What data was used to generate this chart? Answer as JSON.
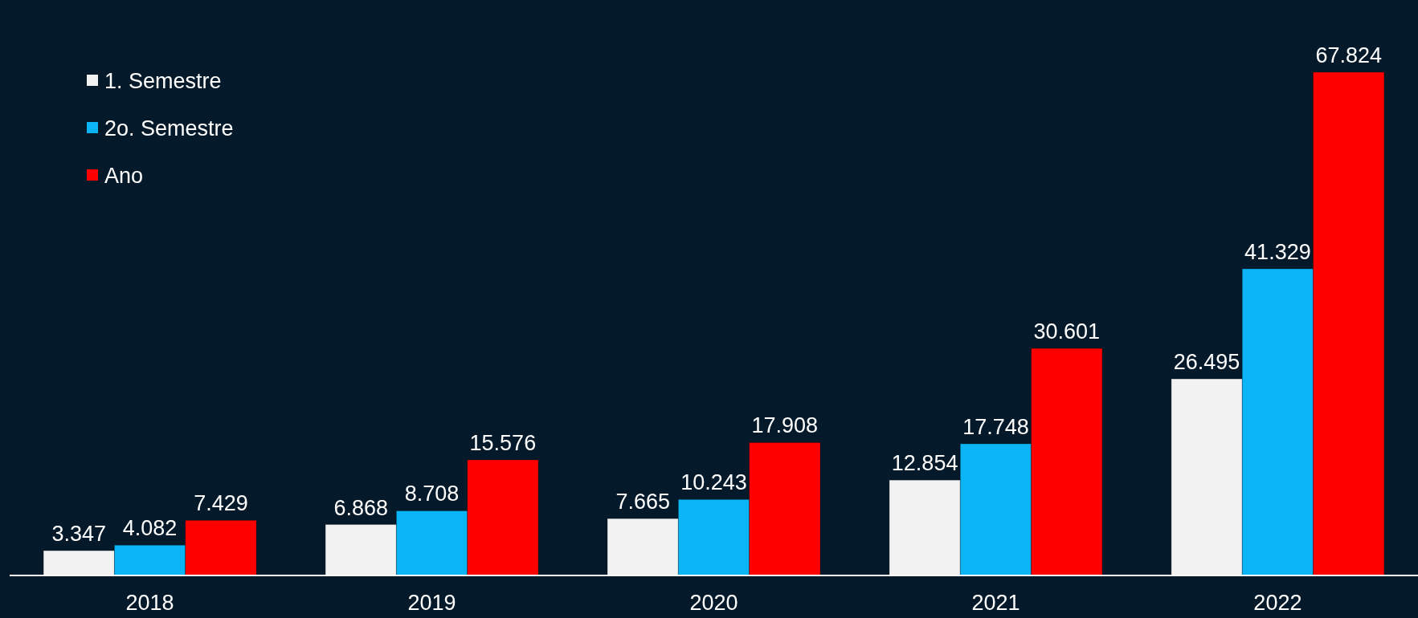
{
  "chart_data": {
    "type": "bar",
    "categories": [
      "2018",
      "2019",
      "2020",
      "2021",
      "2022"
    ],
    "series": [
      {
        "name": "1. Semestre",
        "color": "#f2f2f2",
        "values": [
          3.347,
          6.868,
          7.665,
          12.854,
          26.495
        ]
      },
      {
        "name": "2o. Semestre",
        "color": "#0ab4f5",
        "values": [
          4.082,
          8.708,
          10.243,
          17.748,
          41.329
        ]
      },
      {
        "name": "Ano",
        "color": "#ff0000",
        "values": [
          7.429,
          15.576,
          17.908,
          30.601,
          67.824
        ]
      }
    ],
    "data_labels": true,
    "legend": "top left"
  }
}
